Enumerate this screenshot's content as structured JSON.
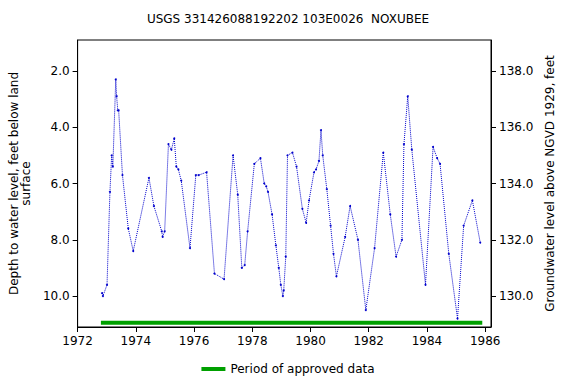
{
  "chart_data": {
    "type": "line",
    "title": "USGS 331426088192202 103E0026  NOXUBEE",
    "y_label": "Depth to water level, feet below land\nsurface",
    "y2_label": "Groundwater level above NGVD 1929, feet",
    "xlim": [
      1972,
      1986.2
    ],
    "xticks": [
      1972,
      1974,
      1976,
      1978,
      1980,
      1982,
      1984,
      1986
    ],
    "ylim": [
      0.9,
      11.1
    ],
    "yticks": [
      {
        "value": 2,
        "label": "2.0"
      },
      {
        "value": 4,
        "label": "4.0"
      },
      {
        "value": 6,
        "label": "6.0"
      },
      {
        "value": 8,
        "label": "8.0"
      },
      {
        "value": 10,
        "label": "10.0"
      }
    ],
    "y2lim": [
      128.9,
      139.1
    ],
    "y2ticks": [
      {
        "value": 130,
        "label": "130.0"
      },
      {
        "value": 132,
        "label": "132.0"
      },
      {
        "value": 134,
        "label": "134.0"
      },
      {
        "value": 136,
        "label": "136.0"
      },
      {
        "value": 138,
        "label": "138.0"
      }
    ],
    "grid": false,
    "legend": "bottom",
    "series": [
      {
        "type": "line",
        "color": "#0000cc",
        "marker": "circle",
        "line_style": "dotted",
        "x": [
          1972.84,
          1972.87,
          1973.01,
          1973.11,
          1973.17,
          1973.21,
          1973.31,
          1973.34,
          1973.38,
          1973.41,
          1973.54,
          1973.74,
          1973.91,
          1974.45,
          1974.62,
          1974.89,
          1974.92,
          1974.99,
          1975.12,
          1975.22,
          1975.32,
          1975.39,
          1975.46,
          1975.56,
          1975.86,
          1976.06,
          1976.16,
          1976.43,
          1976.7,
          1977.03,
          1977.34,
          1977.5,
          1977.64,
          1977.74,
          1977.84,
          1978.07,
          1978.28,
          1978.41,
          1978.48,
          1978.54,
          1978.68,
          1978.81,
          1978.91,
          1978.98,
          1979.05,
          1979.08,
          1979.15,
          1979.21,
          1979.38,
          1979.52,
          1979.72,
          1979.85,
          1979.95,
          1980.12,
          1980.19,
          1980.29,
          1980.36,
          1980.42,
          1980.56,
          1980.69,
          1980.79,
          1980.89,
          1981.19,
          1981.36,
          1981.63,
          1981.9,
          1982.2,
          1982.5,
          1982.74,
          1982.94,
          1983.14,
          1983.21,
          1983.34,
          1983.48,
          1983.95,
          1984.21,
          1984.35,
          1984.45,
          1984.75,
          1985.05,
          1985.26,
          1985.56,
          1985.83
        ],
        "values": [
          9.9,
          10.0,
          9.6,
          6.3,
          5.0,
          5.4,
          2.3,
          2.9,
          3.4,
          3.4,
          5.7,
          7.6,
          8.4,
          5.8,
          6.8,
          7.7,
          7.9,
          7.7,
          4.6,
          4.8,
          4.4,
          5.4,
          5.5,
          5.9,
          8.3,
          5.7,
          5.7,
          5.6,
          9.2,
          9.4,
          5.0,
          6.4,
          9.0,
          8.9,
          7.7,
          5.3,
          5.1,
          6.0,
          6.1,
          6.3,
          7.1,
          8.2,
          9.0,
          9.6,
          10.0,
          9.8,
          8.6,
          5.0,
          4.9,
          5.4,
          6.9,
          7.4,
          6.6,
          5.6,
          5.5,
          5.2,
          4.1,
          5.0,
          6.2,
          7.5,
          8.5,
          9.3,
          7.9,
          6.8,
          8.0,
          10.5,
          8.3,
          4.9,
          7.1,
          8.6,
          8.0,
          4.6,
          2.9,
          4.8,
          9.6,
          4.7,
          5.1,
          5.3,
          8.5,
          10.8,
          7.5,
          6.6,
          8.1
        ]
      },
      {
        "name": "Period of approved data",
        "type": "line",
        "color": "#00a000",
        "line_style": "solid",
        "x": [
          1972.8,
          1985.9
        ],
        "values": [
          10.95,
          10.95
        ]
      }
    ]
  }
}
